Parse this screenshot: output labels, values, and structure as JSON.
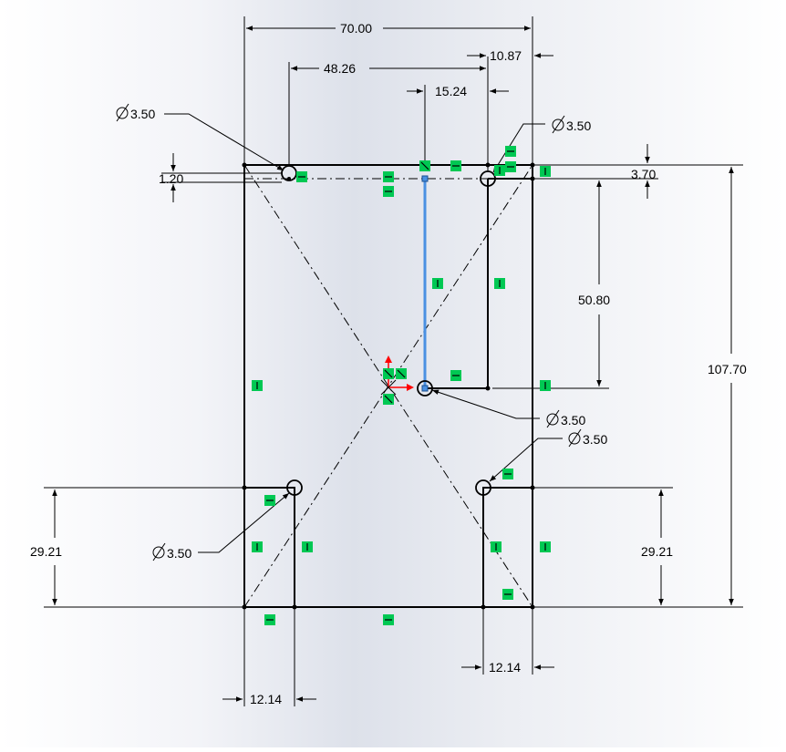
{
  "colors": {
    "background_gradient": [
      "#ffffff",
      "#dde1ea"
    ],
    "sketch_line": "#000000",
    "selected_line": "#4a90e2",
    "relation_marker": "#00c853",
    "origin_axis_x": "#ff0000",
    "origin_axis_y": "#ff0000"
  },
  "dimensions": {
    "overall_width": "70.00",
    "hole_spacing": "48.26",
    "top_right_offset": "10.87",
    "line_offset": "15.24",
    "hole_vertical_offset": "3.70",
    "left_hole_offset": "1.20",
    "vertical_spacing": "50.80",
    "overall_height": "107.70",
    "left_notch_height": "29.21",
    "right_notch_height": "29.21",
    "left_notch_width": "12.14",
    "right_notch_width": "12.14"
  },
  "hole_callouts": {
    "top_left": "3.50",
    "top_right": "3.50",
    "center": "3.50",
    "bottom_right": "3.50",
    "bottom_left": "3.50"
  },
  "icons": {
    "diameter_symbol": "diameter-symbol-icon",
    "horizontal_relation": "horizontal-relation-icon",
    "vertical_relation": "vertical-relation-icon",
    "origin": "origin-icon"
  }
}
